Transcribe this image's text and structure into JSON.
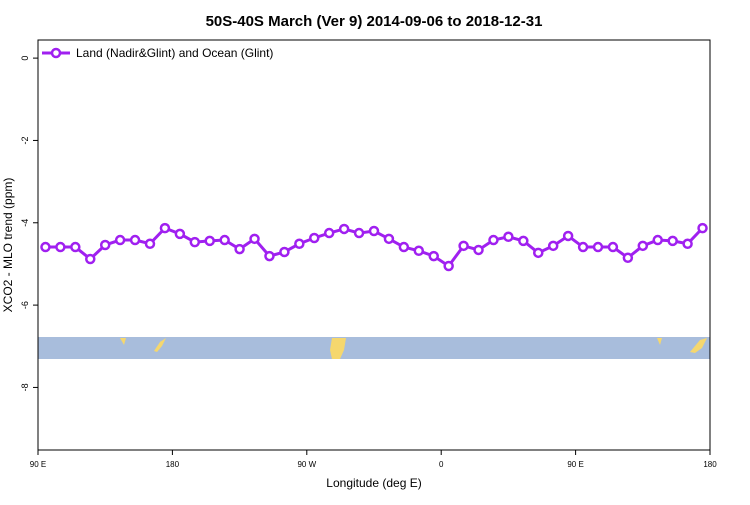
{
  "chart_data": {
    "type": "line",
    "title": "50S-40S March (Ver 9)   2014-09-06 to 2018-12-31",
    "x_label": "Longitude (deg E)",
    "y_label": "XCO2 - MLO trend (ppm)",
    "x": [
      95,
      105,
      115,
      125,
      135,
      145,
      155,
      165,
      175,
      185,
      195,
      205,
      215,
      225,
      235,
      245,
      255,
      265,
      275,
      285,
      295,
      305,
      315,
      325,
      335,
      345,
      355,
      365,
      375,
      385,
      395,
      405,
      415,
      425,
      435,
      445,
      455,
      465,
      475,
      485,
      495,
      505,
      515,
      525,
      535
    ],
    "series": [
      {
        "name": "Land (Nadir&Glint) and Ocean (Glint)",
        "color": "#a020f0",
        "values": [
          -4.59,
          -4.59,
          -4.59,
          -4.88,
          -4.54,
          -4.42,
          -4.42,
          -4.51,
          -4.13,
          -4.27,
          -4.47,
          -4.44,
          -4.42,
          -4.64,
          -4.39,
          -4.81,
          -4.71,
          -4.51,
          -4.37,
          -4.25,
          -4.15,
          -4.25,
          -4.2,
          -4.39,
          -4.59,
          -4.68,
          -4.81,
          -5.05,
          -4.56,
          -4.66,
          -4.42,
          -4.34,
          -4.44,
          -4.73,
          -4.56,
          -4.32,
          -4.59,
          -4.59,
          -4.59,
          -4.85,
          -4.56,
          -4.42,
          -4.44,
          -4.51,
          -4.13
        ]
      }
    ],
    "xlim": [
      90,
      540
    ],
    "xticks": [
      {
        "value": 90,
        "label": "90 E"
      },
      {
        "value": 180,
        "label": "180"
      },
      {
        "value": 270,
        "label": "90 W"
      },
      {
        "value": 360,
        "label": "0"
      },
      {
        "value": 450,
        "label": "90 E"
      },
      {
        "value": 540,
        "label": "180"
      }
    ],
    "ylim": [
      -9.52,
      0.44
    ],
    "yticks": [
      0,
      -2,
      -4,
      -6,
      -8
    ],
    "legend": "top-left"
  }
}
